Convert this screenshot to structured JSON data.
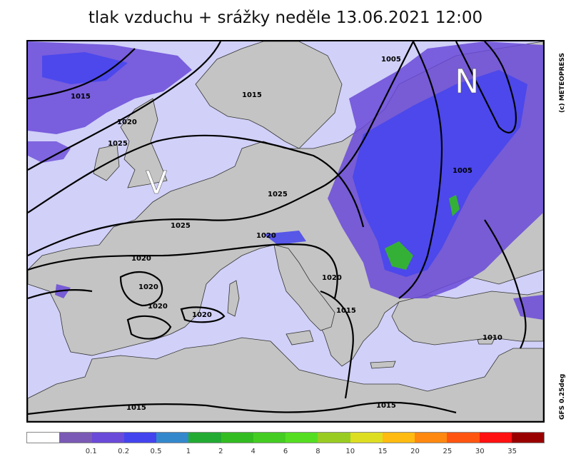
{
  "title": "tlak vzduchu + srážky  neděle 13.06.2021 12:00",
  "credit": "(c) METEOPRESS",
  "model": "GFS 0.25deg",
  "pressure_centers": [
    {
      "name": "high",
      "letter": "V"
    },
    {
      "name": "low",
      "letter": "N"
    }
  ],
  "isobar_labels": [
    "1005",
    "1015",
    "1015",
    "1020",
    "1025",
    "1025",
    "1025",
    "1020",
    "1020",
    "1020",
    "1020",
    "1020",
    "1020",
    "1015",
    "1005",
    "1010",
    "1015",
    "1015"
  ],
  "legend": {
    "colors": [
      "#ffffff",
      "#7a5ab4",
      "#6a4ad8",
      "#4444ee",
      "#3388cc",
      "#22aa33",
      "#33bb22",
      "#44cc22",
      "#55dd22",
      "#99cc22",
      "#dddd22",
      "#ffbb11",
      "#ff8811",
      "#ff5511",
      "#ff1111",
      "#990000"
    ],
    "labels": [
      "0.1",
      "0.2",
      "0.5",
      "1",
      "2",
      "4",
      "6",
      "8",
      "10",
      "15",
      "20",
      "25",
      "30",
      "35"
    ]
  },
  "colors": {
    "sea": "#d0d0f8",
    "land": "#c4c4c4",
    "isobar": "#000000",
    "precip_light": "#6a4ad8",
    "precip_mid": "#4444ee",
    "precip_heavy": "#33bb22"
  }
}
